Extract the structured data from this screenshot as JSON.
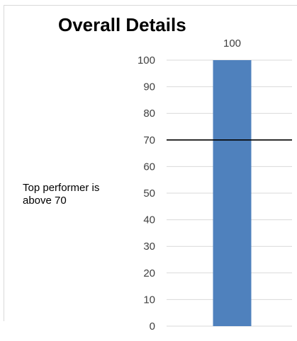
{
  "chart_data": {
    "type": "bar",
    "title": "Overall Details",
    "categories": [
      ""
    ],
    "values": [
      100
    ],
    "data_labels": [
      "100"
    ],
    "ylim": [
      0,
      100
    ],
    "yticks": [
      0,
      10,
      20,
      30,
      40,
      50,
      60,
      70,
      80,
      90,
      100
    ],
    "grid": true,
    "bar_color": "#4f81bd",
    "reference_line": {
      "value": 70,
      "color": "#000000"
    },
    "annotation": "Top performer is above 70"
  }
}
